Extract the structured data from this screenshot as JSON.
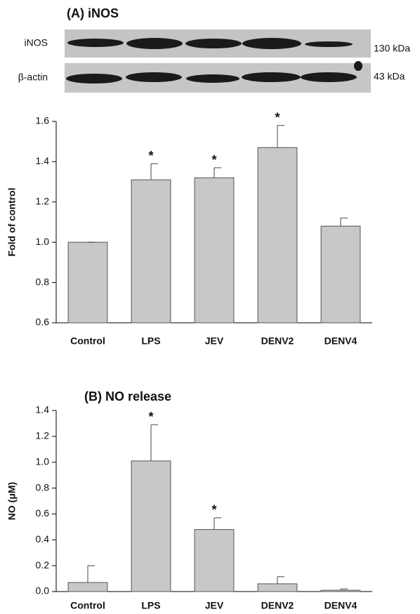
{
  "blot": {
    "rows": [
      {
        "label": "iNOS",
        "size": "130 kDa"
      },
      {
        "label": "β-actin",
        "size": "43 kDa"
      }
    ]
  },
  "chart_data": [
    {
      "type": "bar",
      "title": "(A) iNOS",
      "y_label": "Fold of control",
      "categories": [
        "Control",
        "LPS",
        "JEV",
        "DENV2",
        "DENV4"
      ],
      "values": [
        1.0,
        1.31,
        1.32,
        1.47,
        1.08
      ],
      "errors": [
        0,
        0.08,
        0.05,
        0.11,
        0.04
      ],
      "markers": [
        null,
        "*",
        "*",
        "*",
        null
      ],
      "color": "#c8c8c8",
      "ylim": [
        0.6,
        1.6
      ],
      "yticks": [
        0.6,
        0.8,
        {
          "value": 1.0,
          "label": "1.0"
        },
        1.2,
        1.4,
        1.6
      ]
    },
    {
      "type": "bar",
      "title": "(B) NO release",
      "y_label": "NO (μM)",
      "categories": [
        "Control",
        "LPS",
        "JEV",
        "DENV2",
        "DENV4"
      ],
      "values": [
        0.07,
        1.01,
        0.48,
        0.06,
        0.01
      ],
      "errors": [
        0.13,
        0.28,
        0.09,
        0.055,
        0.01
      ],
      "markers": [
        null,
        "*",
        "*",
        null,
        null
      ],
      "color": "#c8c8c8",
      "ylim": [
        0,
        1.4
      ],
      "yticks": [
        {
          "value": 0,
          "label": "0.0"
        },
        0.2,
        0.4,
        0.6,
        0.8,
        {
          "value": 1.0,
          "label": "1.0"
        },
        1.2,
        1.4
      ]
    }
  ]
}
